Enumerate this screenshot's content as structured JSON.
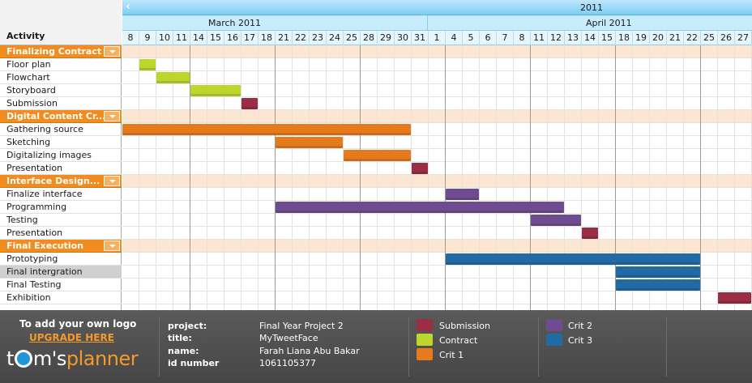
{
  "header": {
    "activity_label": "Activity",
    "year": "2011",
    "months": [
      "March 2011",
      "April 2011"
    ],
    "days": [
      "8",
      "9",
      "10",
      "11",
      "14",
      "15",
      "16",
      "17",
      "18",
      "21",
      "22",
      "23",
      "24",
      "25",
      "28",
      "29",
      "30",
      "31",
      "1",
      "4",
      "5",
      "6",
      "7",
      "8",
      "11",
      "12",
      "13",
      "14",
      "15",
      "18",
      "19",
      "20",
      "21",
      "22",
      "25",
      "26",
      "27"
    ],
    "week_start_indices": [
      4,
      9,
      14,
      19,
      24,
      29,
      34
    ]
  },
  "colors": {
    "submission": "#9b2d45",
    "contract": "#bed52c",
    "crit1": "#e87a1e",
    "crit2": "#6f4c91",
    "crit3": "#216aa3",
    "group": "#f28c1e"
  },
  "rows": [
    {
      "label": "Finalizing Contract",
      "group": true
    },
    {
      "label": "Floor plan",
      "bar": {
        "start": 1,
        "end": 2,
        "color": "contract"
      }
    },
    {
      "label": "Flowchart",
      "bar": {
        "start": 2,
        "end": 4,
        "color": "contract"
      }
    },
    {
      "label": "Storyboard",
      "bar": {
        "start": 4,
        "end": 7,
        "color": "contract"
      }
    },
    {
      "label": "Submission",
      "bar": {
        "start": 7,
        "end": 8,
        "color": "submission"
      }
    },
    {
      "label": "Digital Content Cr...",
      "group": true
    },
    {
      "label": "Gathering source",
      "bar": {
        "start": 0,
        "end": 17,
        "color": "crit1"
      }
    },
    {
      "label": "Sketching",
      "bar": {
        "start": 9,
        "end": 13,
        "color": "crit1"
      }
    },
    {
      "label": "Digitalizing images",
      "bar": {
        "start": 13,
        "end": 17,
        "color": "crit1"
      }
    },
    {
      "label": "Presentation",
      "bar": {
        "start": 17,
        "end": 18,
        "color": "submission"
      }
    },
    {
      "label": "Interface Design...",
      "group": true
    },
    {
      "label": "Finalize interface",
      "bar": {
        "start": 19,
        "end": 21,
        "color": "crit2"
      }
    },
    {
      "label": "Programming",
      "bar": {
        "start": 9,
        "end": 26,
        "color": "crit2"
      }
    },
    {
      "label": "Testing",
      "bar": {
        "start": 24,
        "end": 27,
        "color": "crit2"
      }
    },
    {
      "label": "Presentation",
      "bar": {
        "start": 27,
        "end": 28,
        "color": "submission"
      }
    },
    {
      "label": "Final Execution",
      "group": true
    },
    {
      "label": "Prototyping",
      "bar": {
        "start": 19,
        "end": 34,
        "color": "crit3"
      }
    },
    {
      "label": "Final intergration",
      "selected": true,
      "bar": {
        "start": 29,
        "end": 34,
        "color": "crit3"
      }
    },
    {
      "label": "Final Testing",
      "bar": {
        "start": 29,
        "end": 34,
        "color": "crit3"
      }
    },
    {
      "label": "Exhibition",
      "bar": {
        "start": 35,
        "end": 37,
        "color": "submission"
      }
    }
  ],
  "footer": {
    "promo_text": "To add your own logo",
    "upgrade_label": "UPGRADE HERE",
    "logo_t": "t",
    "logo_m": "m's",
    "logo_planner": "planner",
    "project_label": "project:",
    "project_value": "Final Year Project 2",
    "title_label": "title:",
    "title_value": "MyTweetFace",
    "name_label": "name:",
    "name_value": "Farah Liana Abu Bakar",
    "id_label": "id number",
    "id_value": "1061105377",
    "legend": [
      {
        "label": "Submission",
        "color": "submission"
      },
      {
        "label": "Contract",
        "color": "contract"
      },
      {
        "label": "Crit 1",
        "color": "crit1"
      },
      {
        "label": "Crit 2",
        "color": "crit2"
      },
      {
        "label": "Crit 3",
        "color": "crit3"
      }
    ]
  }
}
